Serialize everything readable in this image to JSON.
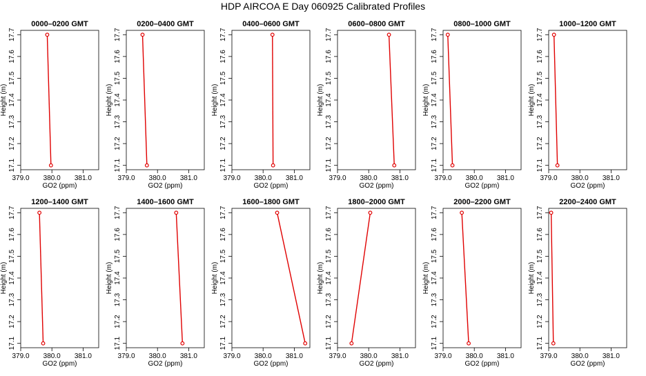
{
  "title": "HDP  AIRCOA E  Day 060925  Calibrated Profiles",
  "colors": {
    "series": "#e00000",
    "axis": "#000000"
  },
  "chart_data": [
    {
      "type": "line",
      "title": "0000–0200 GMT",
      "xlabel": "GO2 (ppm)",
      "ylabel": "Height (m)",
      "xlim": [
        379.0,
        381.5
      ],
      "ylim": [
        17.08,
        17.72
      ],
      "xticks": [
        "379.0",
        "380.0",
        "381.0"
      ],
      "yticks": [
        "17.1",
        "17.2",
        "17.3",
        "17.4",
        "17.5",
        "17.6",
        "17.7"
      ],
      "series": [
        {
          "x": [
            379.85,
            379.97
          ],
          "y": [
            17.7,
            17.1
          ]
        }
      ]
    },
    {
      "type": "line",
      "title": "0200–0400 GMT",
      "xlabel": "GO2 (ppm)",
      "ylabel": "Height (m)",
      "xlim": [
        379.0,
        381.5
      ],
      "ylim": [
        17.08,
        17.72
      ],
      "xticks": [
        "379.0",
        "380.0",
        "381.0"
      ],
      "yticks": [
        "17.1",
        "17.2",
        "17.3",
        "17.4",
        "17.5",
        "17.6",
        "17.7"
      ],
      "series": [
        {
          "x": [
            379.52,
            379.66
          ],
          "y": [
            17.7,
            17.1
          ]
        }
      ]
    },
    {
      "type": "line",
      "title": "0400–0600 GMT",
      "xlabel": "GO2 (ppm)",
      "ylabel": "Height (m)",
      "xlim": [
        379.0,
        381.5
      ],
      "ylim": [
        17.08,
        17.72
      ],
      "xticks": [
        "379.0",
        "380.0",
        "381.0"
      ],
      "yticks": [
        "17.1",
        "17.2",
        "17.3",
        "17.4",
        "17.5",
        "17.6",
        "17.7"
      ],
      "series": [
        {
          "x": [
            380.3,
            380.32
          ],
          "y": [
            17.7,
            17.1
          ]
        }
      ]
    },
    {
      "type": "line",
      "title": "0600–0800 GMT",
      "xlabel": "GO2 (ppm)",
      "ylabel": "Height (m)",
      "xlim": [
        379.0,
        381.5
      ],
      "ylim": [
        17.08,
        17.72
      ],
      "xticks": [
        "379.0",
        "380.0",
        "381.0"
      ],
      "yticks": [
        "17.1",
        "17.2",
        "17.3",
        "17.4",
        "17.5",
        "17.6",
        "17.7"
      ],
      "series": [
        {
          "x": [
            380.65,
            380.82
          ],
          "y": [
            17.7,
            17.1
          ]
        }
      ]
    },
    {
      "type": "line",
      "title": "0800–1000 GMT",
      "xlabel": "GO2 (ppm)",
      "ylabel": "Height (m)",
      "xlim": [
        379.0,
        381.5
      ],
      "ylim": [
        17.08,
        17.72
      ],
      "xticks": [
        "379.0",
        "380.0",
        "381.0"
      ],
      "yticks": [
        "17.1",
        "17.2",
        "17.3",
        "17.4",
        "17.5",
        "17.6",
        "17.7"
      ],
      "series": [
        {
          "x": [
            379.15,
            379.3
          ],
          "y": [
            17.7,
            17.1
          ]
        }
      ]
    },
    {
      "type": "line",
      "title": "1000–1200 GMT",
      "xlabel": "GO2 (ppm)",
      "ylabel": "Height (m)",
      "xlim": [
        379.0,
        381.5
      ],
      "ylim": [
        17.08,
        17.72
      ],
      "xticks": [
        "379.0",
        "380.0",
        "381.0"
      ],
      "yticks": [
        "17.1",
        "17.2",
        "17.3",
        "17.4",
        "17.5",
        "17.6",
        "17.7"
      ],
      "series": [
        {
          "x": [
            379.17,
            379.28
          ],
          "y": [
            17.7,
            17.1
          ]
        }
      ]
    },
    {
      "type": "line",
      "title": "1200–1400 GMT",
      "xlabel": "GO2 (ppm)",
      "ylabel": "Height (m)",
      "xlim": [
        379.0,
        381.5
      ],
      "ylim": [
        17.08,
        17.72
      ],
      "xticks": [
        "379.0",
        "380.0",
        "381.0"
      ],
      "yticks": [
        "17.1",
        "17.2",
        "17.3",
        "17.4",
        "17.5",
        "17.6",
        "17.7"
      ],
      "series": [
        {
          "x": [
            379.6,
            379.72
          ],
          "y": [
            17.7,
            17.1
          ]
        }
      ]
    },
    {
      "type": "line",
      "title": "1400–1600 GMT",
      "xlabel": "GO2 (ppm)",
      "ylabel": "Height (m)",
      "xlim": [
        379.0,
        381.5
      ],
      "ylim": [
        17.08,
        17.72
      ],
      "xticks": [
        "379.0",
        "380.0",
        "381.0"
      ],
      "yticks": [
        "17.1",
        "17.2",
        "17.3",
        "17.4",
        "17.5",
        "17.6",
        "17.7"
      ],
      "series": [
        {
          "x": [
            380.6,
            380.8
          ],
          "y": [
            17.7,
            17.1
          ]
        }
      ]
    },
    {
      "type": "line",
      "title": "1600–1800 GMT",
      "xlabel": "GO2 (ppm)",
      "ylabel": "Height (m)",
      "xlim": [
        379.0,
        381.5
      ],
      "ylim": [
        17.08,
        17.72
      ],
      "xticks": [
        "379.0",
        "380.0",
        "381.0"
      ],
      "yticks": [
        "17.1",
        "17.2",
        "17.3",
        "17.4",
        "17.5",
        "17.6",
        "17.7"
      ],
      "series": [
        {
          "x": [
            380.45,
            381.35
          ],
          "y": [
            17.7,
            17.1
          ]
        }
      ]
    },
    {
      "type": "line",
      "title": "1800–2000 GMT",
      "xlabel": "GO2 (ppm)",
      "ylabel": "Height (m)",
      "xlim": [
        379.0,
        381.5
      ],
      "ylim": [
        17.08,
        17.72
      ],
      "xticks": [
        "379.0",
        "380.0",
        "381.0"
      ],
      "yticks": [
        "17.1",
        "17.2",
        "17.3",
        "17.4",
        "17.5",
        "17.6",
        "17.7"
      ],
      "series": [
        {
          "x": [
            380.05,
            379.45
          ],
          "y": [
            17.7,
            17.1
          ]
        }
      ]
    },
    {
      "type": "line",
      "title": "2000–2200 GMT",
      "xlabel": "GO2 (ppm)",
      "ylabel": "Height (m)",
      "xlim": [
        379.0,
        381.5
      ],
      "ylim": [
        17.08,
        17.72
      ],
      "xticks": [
        "379.0",
        "380.0",
        "381.0"
      ],
      "yticks": [
        "17.1",
        "17.2",
        "17.3",
        "17.4",
        "17.5",
        "17.6",
        "17.7"
      ],
      "series": [
        {
          "x": [
            379.6,
            379.82
          ],
          "y": [
            17.7,
            17.1
          ]
        }
      ]
    },
    {
      "type": "line",
      "title": "2200–2400 GMT",
      "xlabel": "GO2 (ppm)",
      "ylabel": "Height (m)",
      "xlim": [
        379.0,
        381.5
      ],
      "ylim": [
        17.08,
        17.72
      ],
      "xticks": [
        "379.0",
        "380.0",
        "381.0"
      ],
      "yticks": [
        "17.1",
        "17.2",
        "17.3",
        "17.4",
        "17.5",
        "17.6",
        "17.7"
      ],
      "series": [
        {
          "x": [
            379.08,
            379.15
          ],
          "y": [
            17.7,
            17.1
          ]
        }
      ]
    }
  ]
}
